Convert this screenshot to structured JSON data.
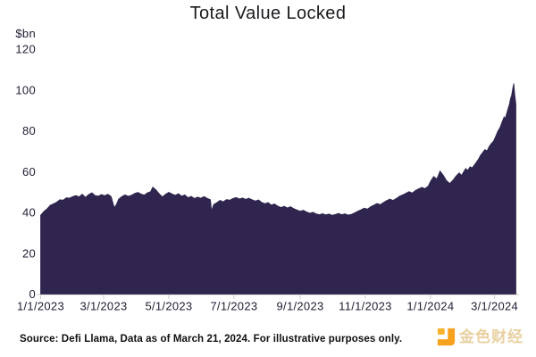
{
  "chart_data": {
    "type": "area",
    "title": "Total Value Locked",
    "ylabel": "$bn",
    "ylim": [
      0,
      120
    ],
    "y_ticks": [
      0,
      20,
      40,
      60,
      80,
      100,
      120
    ],
    "x_tick_labels": [
      "1/1/2023",
      "3/1/2023",
      "5/1/2023",
      "7/1/2023",
      "9/1/2023",
      "11/1/2023",
      "1/1/2024",
      "3/1/2024"
    ],
    "x_tick_days": [
      0,
      59,
      120,
      181,
      243,
      304,
      365,
      425
    ],
    "x_unit": "days since 1/1/2023",
    "grid": false,
    "legend": false,
    "color": "#2f254e",
    "axis_color": "#c9c9cf",
    "series": [
      {
        "name": "Total Value Locked ($bn)",
        "points": [
          [
            0,
            38.6
          ],
          [
            3,
            40.5
          ],
          [
            6,
            41.8
          ],
          [
            9,
            43.5
          ],
          [
            12,
            44.2
          ],
          [
            15,
            45.0
          ],
          [
            18,
            46.2
          ],
          [
            21,
            46.0
          ],
          [
            24,
            47.2
          ],
          [
            27,
            47.0
          ],
          [
            30,
            47.8
          ],
          [
            33,
            48.3
          ],
          [
            36,
            47.6
          ],
          [
            39,
            48.9
          ],
          [
            42,
            47.4
          ],
          [
            45,
            48.8
          ],
          [
            48,
            49.6
          ],
          [
            51,
            48.2
          ],
          [
            54,
            48.0
          ],
          [
            57,
            48.8
          ],
          [
            60,
            48.2
          ],
          [
            63,
            48.9
          ],
          [
            66,
            47.8
          ],
          [
            69,
            42.3
          ],
          [
            71,
            44.0
          ],
          [
            73,
            46.5
          ],
          [
            76,
            47.8
          ],
          [
            79,
            48.6
          ],
          [
            82,
            47.9
          ],
          [
            85,
            48.4
          ],
          [
            88,
            49.3
          ],
          [
            91,
            49.8
          ],
          [
            94,
            49.0
          ],
          [
            97,
            48.5
          ],
          [
            100,
            49.6
          ],
          [
            103,
            50.2
          ],
          [
            105,
            52.4
          ],
          [
            108,
            51.0
          ],
          [
            111,
            49.2
          ],
          [
            114,
            47.6
          ],
          [
            117,
            48.9
          ],
          [
            120,
            49.9
          ],
          [
            123,
            49.1
          ],
          [
            126,
            48.4
          ],
          [
            129,
            49.2
          ],
          [
            132,
            48.0
          ],
          [
            135,
            48.6
          ],
          [
            138,
            47.2
          ],
          [
            141,
            47.9
          ],
          [
            144,
            46.8
          ],
          [
            147,
            47.5
          ],
          [
            150,
            47.0
          ],
          [
            153,
            47.8
          ],
          [
            156,
            46.9
          ],
          [
            159,
            46.2
          ],
          [
            160,
            40.8
          ],
          [
            162,
            43.9
          ],
          [
            165,
            44.8
          ],
          [
            168,
            45.9
          ],
          [
            171,
            45.2
          ],
          [
            174,
            46.3
          ],
          [
            177,
            46.0
          ],
          [
            180,
            46.8
          ],
          [
            183,
            47.3
          ],
          [
            186,
            46.6
          ],
          [
            189,
            47.1
          ],
          [
            192,
            46.4
          ],
          [
            195,
            47.0
          ],
          [
            198,
            46.2
          ],
          [
            201,
            45.6
          ],
          [
            204,
            46.1
          ],
          [
            207,
            44.9
          ],
          [
            210,
            44.3
          ],
          [
            213,
            44.8
          ],
          [
            216,
            43.6
          ],
          [
            219,
            44.2
          ],
          [
            222,
            43.1
          ],
          [
            225,
            42.4
          ],
          [
            228,
            43.0
          ],
          [
            231,
            42.2
          ],
          [
            234,
            42.8
          ],
          [
            237,
            41.9
          ],
          [
            240,
            41.2
          ],
          [
            243,
            40.6
          ],
          [
            246,
            41.1
          ],
          [
            249,
            40.2
          ],
          [
            252,
            39.6
          ],
          [
            255,
            40.1
          ],
          [
            258,
            39.3
          ],
          [
            261,
            38.9
          ],
          [
            264,
            39.4
          ],
          [
            267,
            38.8
          ],
          [
            270,
            39.2
          ],
          [
            273,
            38.6
          ],
          [
            276,
            39.0
          ],
          [
            279,
            39.5
          ],
          [
            282,
            38.9
          ],
          [
            285,
            39.3
          ],
          [
            288,
            38.7
          ],
          [
            291,
            39.1
          ],
          [
            294,
            39.8
          ],
          [
            297,
            40.6
          ],
          [
            300,
            41.3
          ],
          [
            303,
            42.1
          ],
          [
            306,
            41.6
          ],
          [
            309,
            42.8
          ],
          [
            312,
            43.6
          ],
          [
            315,
            44.4
          ],
          [
            318,
            43.8
          ],
          [
            321,
            44.9
          ],
          [
            324,
            45.8
          ],
          [
            327,
            46.5
          ],
          [
            330,
            45.9
          ],
          [
            333,
            46.8
          ],
          [
            336,
            47.9
          ],
          [
            339,
            48.6
          ],
          [
            342,
            49.4
          ],
          [
            345,
            50.2
          ],
          [
            348,
            49.5
          ],
          [
            351,
            50.8
          ],
          [
            354,
            51.6
          ],
          [
            357,
            52.3
          ],
          [
            360,
            51.7
          ],
          [
            363,
            53.0
          ],
          [
            365,
            55.2
          ],
          [
            368,
            57.6
          ],
          [
            371,
            56.4
          ],
          [
            374,
            60.3
          ],
          [
            377,
            58.2
          ],
          [
            380,
            55.6
          ],
          [
            383,
            54.2
          ],
          [
            386,
            55.8
          ],
          [
            389,
            57.9
          ],
          [
            392,
            59.4
          ],
          [
            394,
            58.1
          ],
          [
            396,
            59.8
          ],
          [
            398,
            61.5
          ],
          [
            400,
            60.6
          ],
          [
            402,
            62.4
          ],
          [
            404,
            61.8
          ],
          [
            407,
            63.9
          ],
          [
            410,
            66.2
          ],
          [
            412,
            68.0
          ],
          [
            414,
            69.4
          ],
          [
            416,
            70.8
          ],
          [
            418,
            70.1
          ],
          [
            420,
            72.3
          ],
          [
            422,
            73.8
          ],
          [
            424,
            74.9
          ],
          [
            426,
            77.2
          ],
          [
            428,
            79.8
          ],
          [
            430,
            81.5
          ],
          [
            432,
            84.3
          ],
          [
            434,
            86.8
          ],
          [
            435,
            85.9
          ],
          [
            437,
            89.6
          ],
          [
            439,
            93.2
          ],
          [
            440,
            95.8
          ],
          [
            441,
            97.4
          ],
          [
            442,
            100.6
          ],
          [
            443,
            103.2
          ],
          [
            444,
            97.5
          ],
          [
            445,
            93.0
          ]
        ]
      }
    ]
  },
  "footer": {
    "source": "Source: Defi Llama, Data as of March 21, 2024. For illustrative purposes only.",
    "logo_text": "金色财经"
  }
}
